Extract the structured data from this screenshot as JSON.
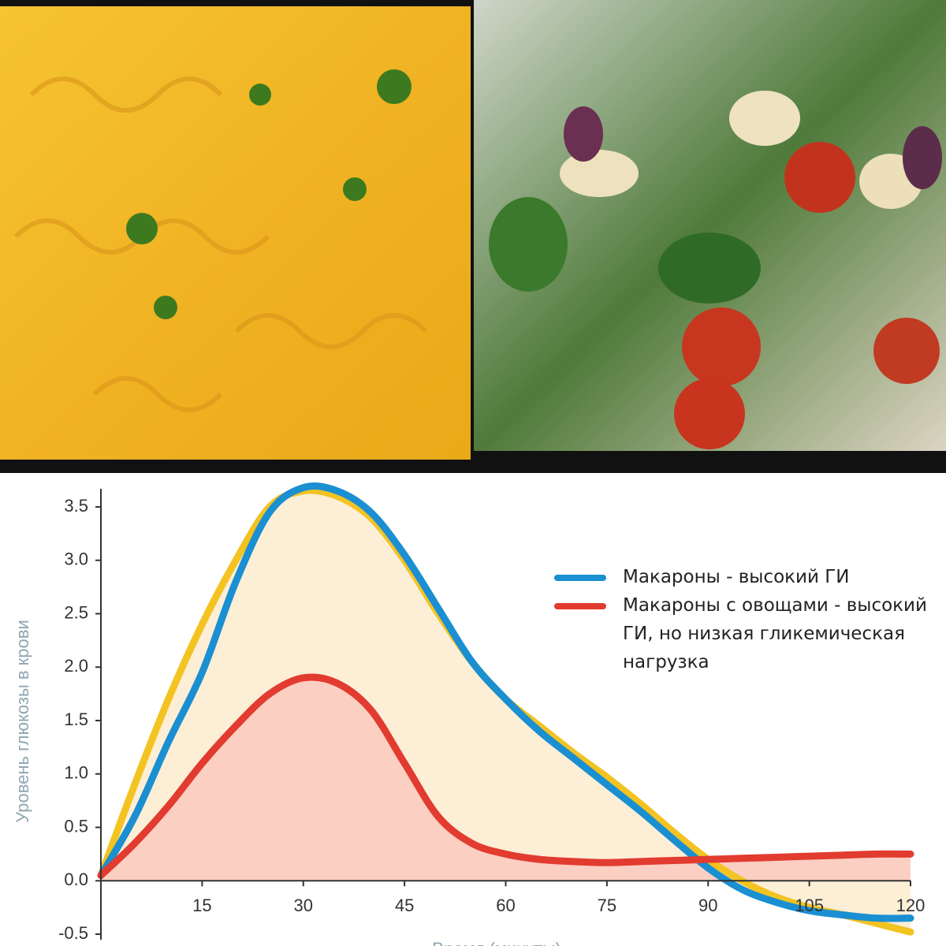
{
  "chart_data": {
    "type": "line",
    "ylabel": "Уровень глюкозы в крови",
    "xlabel": "Время (минуты)",
    "x": [
      0,
      5,
      10,
      15,
      20,
      25,
      30,
      35,
      40,
      45,
      50,
      55,
      60,
      65,
      70,
      75,
      80,
      85,
      90,
      95,
      100,
      105,
      110,
      115,
      120
    ],
    "series": [
      {
        "color": "#f3c322",
        "fill": "#fdeed6",
        "values": [
          0.05,
          0.9,
          1.7,
          2.4,
          3.0,
          3.5,
          3.65,
          3.6,
          3.4,
          3.0,
          2.5,
          2.05,
          1.7,
          1.45,
          1.2,
          0.97,
          0.72,
          0.45,
          0.2,
          0.0,
          -0.15,
          -0.25,
          -0.32,
          -0.4,
          -0.48
        ]
      },
      {
        "name": "Макароны - высокий ГИ",
        "color": "#1a8fd2",
        "values": [
          0.05,
          0.6,
          1.3,
          1.95,
          2.8,
          3.45,
          3.68,
          3.65,
          3.45,
          3.05,
          2.55,
          2.05,
          1.7,
          1.4,
          1.15,
          0.9,
          0.65,
          0.38,
          0.12,
          -0.08,
          -0.2,
          -0.28,
          -0.32,
          -0.35,
          -0.35
        ]
      },
      {
        "name": "Макароны с овощами - высокий ГИ, но низкая гликемическая нагрузка",
        "color": "#e23b30",
        "fill": "#fbcfc2",
        "values": [
          0.05,
          0.35,
          0.7,
          1.1,
          1.45,
          1.75,
          1.9,
          1.85,
          1.6,
          1.1,
          0.6,
          0.35,
          0.25,
          0.2,
          0.18,
          0.17,
          0.18,
          0.19,
          0.2,
          0.21,
          0.22,
          0.23,
          0.24,
          0.25,
          0.25
        ]
      }
    ],
    "xlim": [
      0,
      120
    ],
    "xticks": [
      15,
      30,
      45,
      60,
      75,
      90,
      105,
      120
    ],
    "ylim": [
      -0.5,
      3.5
    ],
    "yticks": [
      -0.5,
      {
        "value": 0,
        "label": "0.0"
      },
      0.5,
      {
        "value": 1,
        "label": "1.0"
      },
      1.5,
      {
        "value": 2,
        "label": "2.0"
      },
      2.5,
      {
        "value": 3,
        "label": "3.0"
      },
      3.5
    ]
  }
}
